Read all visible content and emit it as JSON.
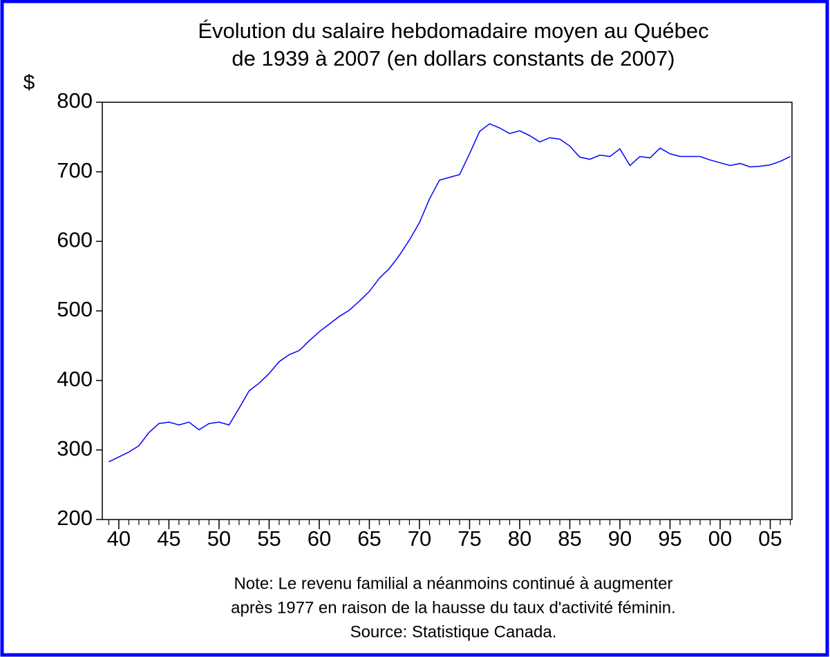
{
  "chart_data": {
    "type": "line",
    "title": [
      "Évolution du salaire hebdomadaire moyen au Québec",
      "de 1939 à 2007 (en dollars constants de 2007)"
    ],
    "ylabel": "$",
    "note": [
      "Note: Le revenu familial a néanmoins continué à augmenter",
      "après 1977 en raison de la hausse du taux d'activité féminin.",
      "Source: Statistique Canada."
    ],
    "x": [
      1939,
      1940,
      1941,
      1942,
      1943,
      1944,
      1945,
      1946,
      1947,
      1948,
      1949,
      1950,
      1951,
      1952,
      1953,
      1954,
      1955,
      1956,
      1957,
      1958,
      1959,
      1960,
      1961,
      1962,
      1963,
      1964,
      1965,
      1966,
      1967,
      1968,
      1969,
      1970,
      1971,
      1972,
      1973,
      1974,
      1975,
      1976,
      1977,
      1978,
      1979,
      1980,
      1981,
      1982,
      1983,
      1984,
      1985,
      1986,
      1987,
      1988,
      1989,
      1990,
      1991,
      1992,
      1993,
      1994,
      1995,
      1996,
      1997,
      1998,
      1999,
      2000,
      2001,
      2002,
      2003,
      2004,
      2005,
      2006,
      2007
    ],
    "series": [
      {
        "name": "Salaire hebdomadaire moyen",
        "color": "#0000ff",
        "values": [
          283,
          290,
          297,
          306,
          325,
          338,
          340,
          336,
          340,
          329,
          338,
          340,
          336,
          360,
          385,
          396,
          410,
          427,
          437,
          443,
          457,
          470,
          481,
          492,
          501,
          514,
          528,
          547,
          561,
          580,
          602,
          627,
          661,
          688,
          692,
          696,
          726,
          758,
          769,
          763,
          755,
          759,
          752,
          743,
          749,
          747,
          737,
          721,
          718,
          724,
          722,
          733,
          709,
          722,
          720,
          734,
          726,
          722,
          722,
          722,
          717,
          713,
          709,
          712,
          707,
          708,
          710,
          715,
          722
        ]
      }
    ],
    "xlim": [
      1938.35,
      2007.17
    ],
    "xticks": [
      {
        "value": 1940,
        "label": "40"
      },
      {
        "value": 1945,
        "label": "45"
      },
      {
        "value": 1950,
        "label": "50"
      },
      {
        "value": 1955,
        "label": "55"
      },
      {
        "value": 1960,
        "label": "60"
      },
      {
        "value": 1965,
        "label": "65"
      },
      {
        "value": 1970,
        "label": "70"
      },
      {
        "value": 1975,
        "label": "75"
      },
      {
        "value": 1980,
        "label": "80"
      },
      {
        "value": 1985,
        "label": "85"
      },
      {
        "value": 1990,
        "label": "90"
      },
      {
        "value": 1995,
        "label": "95"
      },
      {
        "value": 2000,
        "label": "00"
      },
      {
        "value": 2005,
        "label": "05"
      }
    ],
    "ylim": [
      200,
      800
    ],
    "yticks": [
      200,
      300,
      400,
      500,
      600,
      700,
      800
    ],
    "grid": false
  }
}
